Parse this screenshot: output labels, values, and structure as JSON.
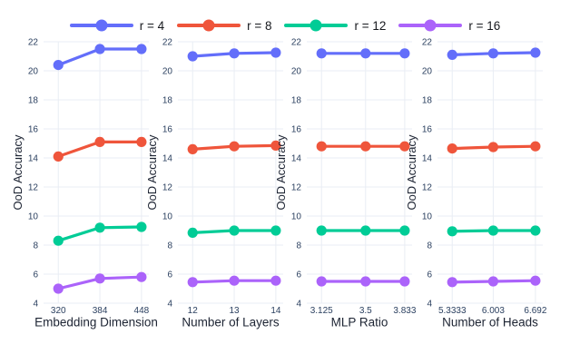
{
  "legend": {
    "items": [
      {
        "label": "r = 4",
        "color": "#636EFA"
      },
      {
        "label": "r = 8",
        "color": "#EF553B"
      },
      {
        "label": "r = 12",
        "color": "#00CC96"
      },
      {
        "label": "r = 16",
        "color": "#AB63FA"
      }
    ]
  },
  "chart_data": {
    "type": "line",
    "ylabel": "OoD Accuracy",
    "ylim": [
      4,
      22
    ],
    "yticks": [
      4,
      6,
      8,
      10,
      12,
      14,
      16,
      18,
      20,
      22
    ],
    "grid": true,
    "legend_position": "top-center",
    "marker": "circle",
    "series_names": [
      "r = 4",
      "r = 8",
      "r = 12",
      "r = 16"
    ],
    "series_colors": [
      "#636EFA",
      "#EF553B",
      "#00CC96",
      "#AB63FA"
    ],
    "colors": {
      "background": "#ffffff",
      "gridline": "#e9edf4",
      "tick_text": "#2a3f5f",
      "axis_title_text": "#1d2433"
    },
    "subplots": [
      {
        "xlabel": "Embedding Dimension",
        "x": [
          320,
          384,
          448
        ],
        "xtick_labels": [
          "320",
          "384",
          "448"
        ],
        "series": [
          {
            "name": "r = 4",
            "values": [
              20.4,
              21.5,
              21.5
            ]
          },
          {
            "name": "r = 8",
            "values": [
              14.1,
              15.1,
              15.1
            ]
          },
          {
            "name": "r = 12",
            "values": [
              8.3,
              9.2,
              9.25
            ]
          },
          {
            "name": "r = 16",
            "values": [
              5.0,
              5.7,
              5.8
            ]
          }
        ]
      },
      {
        "xlabel": "Number of Layers",
        "x": [
          12,
          13,
          14
        ],
        "xtick_labels": [
          "12",
          "13",
          "14"
        ],
        "series": [
          {
            "name": "r = 4",
            "values": [
              21.0,
              21.2,
              21.25
            ]
          },
          {
            "name": "r = 8",
            "values": [
              14.6,
              14.8,
              14.85
            ]
          },
          {
            "name": "r = 12",
            "values": [
              8.85,
              9.0,
              9.0
            ]
          },
          {
            "name": "r = 16",
            "values": [
              5.45,
              5.55,
              5.55
            ]
          }
        ]
      },
      {
        "xlabel": "MLP Ratio",
        "x": [
          3.125,
          3.5,
          3.833
        ],
        "xtick_labels": [
          "3.125",
          "3.5",
          "3.833"
        ],
        "series": [
          {
            "name": "r = 4",
            "values": [
              21.2,
              21.2,
              21.2
            ]
          },
          {
            "name": "r = 8",
            "values": [
              14.8,
              14.8,
              14.8
            ]
          },
          {
            "name": "r = 12",
            "values": [
              9.0,
              9.0,
              9.0
            ]
          },
          {
            "name": "r = 16",
            "values": [
              5.5,
              5.5,
              5.5
            ]
          }
        ]
      },
      {
        "xlabel": "Number of Heads",
        "x": [
          5.3333,
          6.003,
          6.692
        ],
        "xtick_labels": [
          "5.3333",
          "6.003",
          "6.692"
        ],
        "series": [
          {
            "name": "r = 4",
            "values": [
              21.1,
              21.2,
              21.25
            ]
          },
          {
            "name": "r = 8",
            "values": [
              14.65,
              14.75,
              14.8
            ]
          },
          {
            "name": "r = 12",
            "values": [
              8.95,
              9.0,
              9.0
            ]
          },
          {
            "name": "r = 16",
            "values": [
              5.45,
              5.5,
              5.55
            ]
          }
        ]
      }
    ]
  }
}
